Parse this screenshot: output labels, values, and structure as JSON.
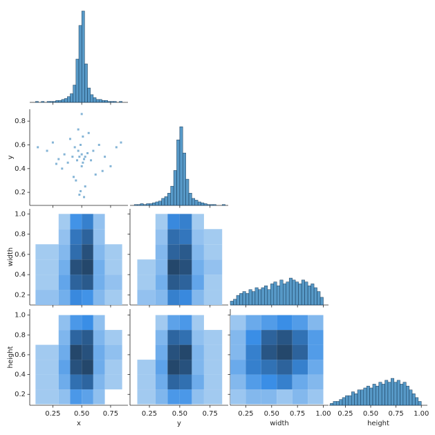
{
  "chart_data": {
    "type": "pairplot",
    "color": "#1f77b4",
    "cmap": [
      "#b3d4f2",
      "#3a8ee6",
      "#24476b"
    ],
    "variables": [
      {
        "label": "x",
        "lim": [
          0.05,
          0.9
        ],
        "xticks": [
          0.25,
          {
            "value": 0.5,
            "label": "0.50"
          },
          0.75
        ]
      },
      {
        "label": "y",
        "lim": [
          0.09,
          0.9
        ],
        "xticks": [
          0.25,
          {
            "value": 0.5,
            "label": "0.50"
          },
          0.75
        ],
        "yticks": [
          0.2,
          0.4,
          0.6,
          0.8
        ]
      },
      {
        "label": "width",
        "lim": [
          0.1,
          1.05
        ],
        "xticks": [
          0.25,
          {
            "value": 0.5,
            "label": "0.50"
          },
          0.75,
          {
            "value": 1,
            "label": "1.00"
          }
        ],
        "yticks": [
          0.2,
          0.4,
          0.6,
          0.8,
          {
            "value": 1,
            "label": "1.0"
          }
        ]
      },
      {
        "label": "height",
        "lim": [
          0.09,
          1.06
        ],
        "xticks": [
          0.25,
          {
            "value": 0.5,
            "label": "0.50"
          },
          0.75,
          {
            "value": 1,
            "label": "1.00"
          }
        ],
        "yticks": [
          0.2,
          0.4,
          0.6,
          0.8,
          {
            "value": 1,
            "label": "1.0"
          }
        ]
      }
    ],
    "histograms": [
      {
        "ylim": [
          0,
          100
        ],
        "bins": [
          0.1,
          0.125,
          0.15,
          0.175,
          0.2,
          0.225,
          0.25,
          0.275,
          0.3,
          0.325,
          0.35,
          0.375,
          0.4,
          0.425,
          0.45,
          0.475,
          0.5,
          0.525,
          0.55,
          0.575,
          0.6,
          0.625,
          0.65,
          0.675,
          0.7,
          0.725,
          0.75,
          0.775,
          0.8,
          0.825,
          0.85
        ],
        "counts": [
          1,
          0,
          1,
          0,
          1,
          1,
          1,
          2,
          2,
          3,
          4,
          6,
          9,
          18,
          45,
          80,
          95,
          40,
          15,
          8,
          5,
          3,
          3,
          2,
          2,
          1,
          1,
          1,
          0,
          1
        ]
      },
      {
        "ylim": [
          0,
          110
        ],
        "bins": [
          0.125,
          0.15,
          0.175,
          0.2,
          0.225,
          0.25,
          0.275,
          0.3,
          0.325,
          0.35,
          0.375,
          0.4,
          0.425,
          0.45,
          0.475,
          0.5,
          0.525,
          0.55,
          0.575,
          0.6,
          0.625,
          0.65,
          0.675,
          0.7,
          0.725,
          0.75,
          0.775,
          0.8,
          0.825,
          0.85,
          0.875
        ],
        "counts": [
          1,
          1,
          2,
          1,
          2,
          2,
          3,
          4,
          5,
          8,
          10,
          14,
          22,
          40,
          75,
          90,
          60,
          30,
          14,
          8,
          6,
          4,
          3,
          2,
          1,
          1,
          1,
          0,
          0,
          1
        ]
      },
      {
        "ylim": [
          0,
          50
        ],
        "bins": [
          0.1,
          0.13,
          0.16,
          0.19,
          0.22,
          0.25,
          0.28,
          0.31,
          0.34,
          0.37,
          0.4,
          0.43,
          0.46,
          0.49,
          0.52,
          0.55,
          0.58,
          0.61,
          0.64,
          0.67,
          0.7,
          0.73,
          0.76,
          0.79,
          0.82,
          0.85,
          0.88,
          0.91,
          0.94,
          0.97,
          1.0
        ],
        "counts": [
          2,
          3,
          5,
          6,
          7,
          6,
          8,
          7,
          9,
          8,
          9,
          10,
          8,
          11,
          12,
          10,
          13,
          11,
          12,
          14,
          13,
          12,
          11,
          13,
          12,
          10,
          11,
          9,
          7,
          4
        ]
      },
      {
        "ylim": [
          0,
          50
        ],
        "bins": [
          0.1,
          0.13,
          0.16,
          0.19,
          0.22,
          0.25,
          0.28,
          0.31,
          0.34,
          0.37,
          0.4,
          0.43,
          0.46,
          0.49,
          0.52,
          0.55,
          0.58,
          0.61,
          0.64,
          0.67,
          0.7,
          0.73,
          0.76,
          0.79,
          0.82,
          0.85,
          0.88,
          0.91,
          0.94,
          0.97,
          1.0
        ],
        "counts": [
          1,
          2,
          2,
          3,
          4,
          5,
          5,
          7,
          6,
          8,
          8,
          9,
          10,
          9,
          11,
          10,
          12,
          11,
          13,
          12,
          14,
          12,
          13,
          11,
          12,
          10,
          8,
          6,
          4,
          2
        ]
      }
    ],
    "scatter": {
      "x": [
        0.48,
        0.5,
        0.52,
        0.47,
        0.51,
        0.49,
        0.53,
        0.46,
        0.5,
        0.55,
        0.44,
        0.42,
        0.58,
        0.6,
        0.38,
        0.35,
        0.65,
        0.3,
        0.7,
        0.25,
        0.2,
        0.12,
        0.75,
        0.8,
        0.84,
        0.5,
        0.48,
        0.52,
        0.45,
        0.56,
        0.4,
        0.62,
        0.33,
        0.68,
        0.28,
        0.47,
        0.53,
        0.49,
        0.51,
        0.43
      ],
      "y": [
        0.5,
        0.52,
        0.48,
        0.55,
        0.45,
        0.6,
        0.5,
        0.47,
        0.42,
        0.53,
        0.58,
        0.5,
        0.47,
        0.55,
        0.45,
        0.52,
        0.6,
        0.48,
        0.5,
        0.62,
        0.55,
        0.58,
        0.42,
        0.58,
        0.62,
        0.86,
        0.18,
        0.16,
        0.3,
        0.7,
        0.65,
        0.35,
        0.4,
        0.38,
        0.44,
        0.73,
        0.25,
        0.21,
        0.67,
        0.33
      ]
    },
    "hist2d": [
      {
        "x_bins": [
          0.1,
          0.3,
          0.4,
          0.5,
          0.6,
          0.7,
          0.85
        ],
        "y_bins": [
          0.1,
          0.25,
          0.4,
          0.55,
          0.7,
          0.85,
          1.0
        ],
        "counts": [
          [
            2,
            4,
            8,
            7,
            3,
            1
          ],
          [
            1,
            5,
            12,
            13,
            4,
            2
          ],
          [
            1,
            4,
            14,
            15,
            4,
            1
          ],
          [
            1,
            3,
            11,
            14,
            3,
            1
          ],
          [
            0,
            2,
            10,
            12,
            2,
            0
          ],
          [
            0,
            1,
            7,
            9,
            2,
            0
          ]
        ]
      },
      {
        "x_bins": [
          0.15,
          0.3,
          0.4,
          0.5,
          0.6,
          0.7,
          0.85
        ],
        "y_bins": [
          0.1,
          0.25,
          0.4,
          0.55,
          0.7,
          0.85,
          1.0
        ],
        "counts": [
          [
            2,
            3,
            9,
            8,
            3,
            1
          ],
          [
            1,
            4,
            13,
            12,
            5,
            1
          ],
          [
            1,
            3,
            15,
            14,
            4,
            2
          ],
          [
            0,
            3,
            12,
            13,
            3,
            1
          ],
          [
            0,
            2,
            11,
            10,
            2,
            1
          ],
          [
            0,
            1,
            8,
            9,
            1,
            0
          ]
        ]
      },
      {
        "x_bins": [
          0.1,
          0.3,
          0.4,
          0.5,
          0.6,
          0.7,
          0.85
        ],
        "y_bins": [
          0.1,
          0.25,
          0.4,
          0.55,
          0.7,
          0.85,
          1.0
        ],
        "counts": [
          [
            1,
            2,
            6,
            5,
            2,
            0
          ],
          [
            1,
            4,
            10,
            11,
            3,
            1
          ],
          [
            1,
            5,
            13,
            14,
            4,
            1
          ],
          [
            1,
            4,
            14,
            13,
            4,
            2
          ],
          [
            0,
            3,
            11,
            12,
            3,
            1
          ],
          [
            0,
            2,
            6,
            7,
            2,
            0
          ]
        ]
      },
      {
        "x_bins": [
          0.15,
          0.3,
          0.4,
          0.5,
          0.6,
          0.7,
          0.85
        ],
        "y_bins": [
          0.1,
          0.25,
          0.4,
          0.55,
          0.7,
          0.85,
          1.0
        ],
        "counts": [
          [
            1,
            3,
            6,
            6,
            2,
            1
          ],
          [
            1,
            4,
            11,
            10,
            4,
            1
          ],
          [
            1,
            5,
            14,
            13,
            3,
            1
          ],
          [
            0,
            4,
            13,
            14,
            3,
            1
          ],
          [
            0,
            3,
            11,
            10,
            2,
            1
          ],
          [
            0,
            1,
            5,
            6,
            1,
            0
          ]
        ]
      },
      {
        "x_bins": [
          0.1,
          0.25,
          0.4,
          0.55,
          0.7,
          0.85,
          1.0
        ],
        "y_bins": [
          0.1,
          0.25,
          0.4,
          0.55,
          0.7,
          0.85,
          1.0
        ],
        "counts": [
          [
            1,
            2,
            2,
            1,
            2,
            1
          ],
          [
            2,
            4,
            5,
            6,
            3,
            2
          ],
          [
            3,
            6,
            7,
            8,
            6,
            3
          ],
          [
            2,
            6,
            9,
            10,
            8,
            4
          ],
          [
            2,
            5,
            8,
            9,
            7,
            4
          ],
          [
            1,
            3,
            4,
            5,
            4,
            2
          ]
        ]
      }
    ]
  }
}
